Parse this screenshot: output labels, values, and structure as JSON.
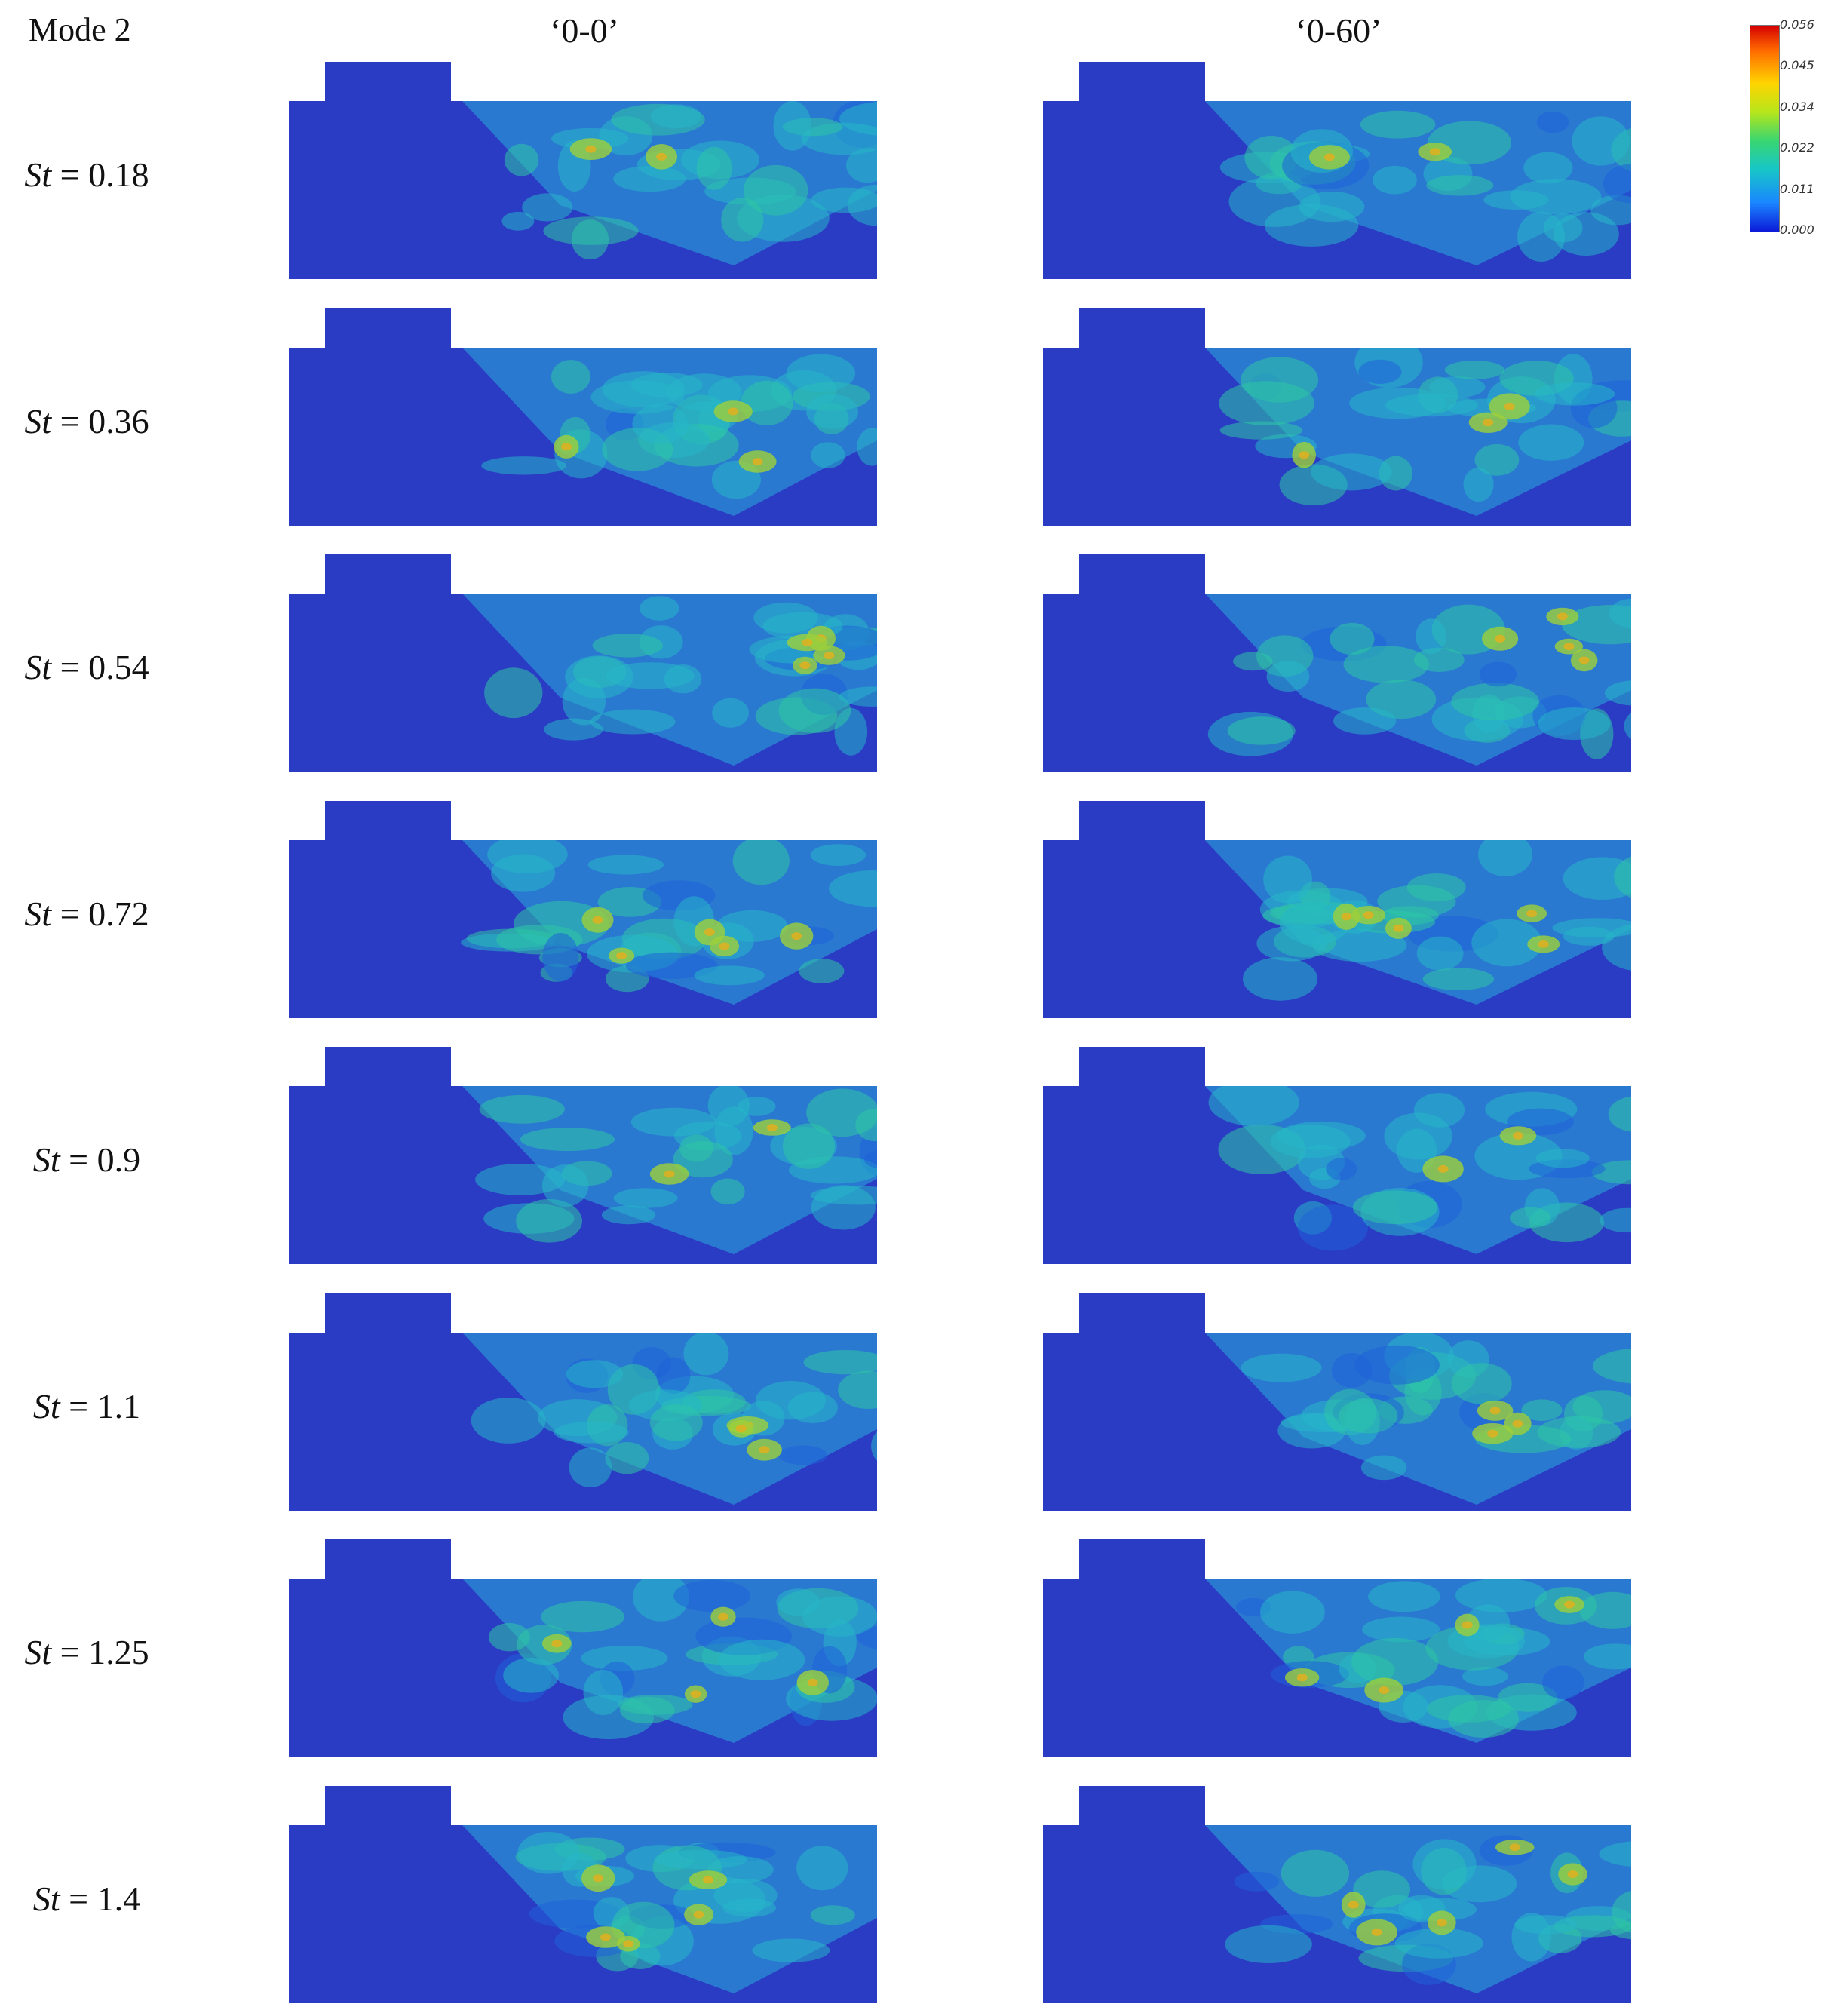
{
  "figure": {
    "mode_label": "Mode 2",
    "columns": [
      "‘0-0’",
      "‘0-60’"
    ],
    "strouhal_symbol": "St",
    "rows": [
      {
        "value": "0.18"
      },
      {
        "value": "0.36"
      },
      {
        "value": "0.54"
      },
      {
        "value": "0.72"
      },
      {
        "value": "0.9"
      },
      {
        "value": "1.1"
      },
      {
        "value": "1.25"
      },
      {
        "value": "1.4"
      }
    ],
    "colorbar": {
      "ticks": [
        "0.056",
        "0.045",
        "0.034",
        "0.022",
        "0.011",
        "0.000"
      ],
      "colors": [
        "#d40000",
        "#ff6a00",
        "#ffd400",
        "#b6e61b",
        "#38d672",
        "#17c6c8",
        "#1a86ff",
        "#0c1ad8"
      ]
    }
  }
}
